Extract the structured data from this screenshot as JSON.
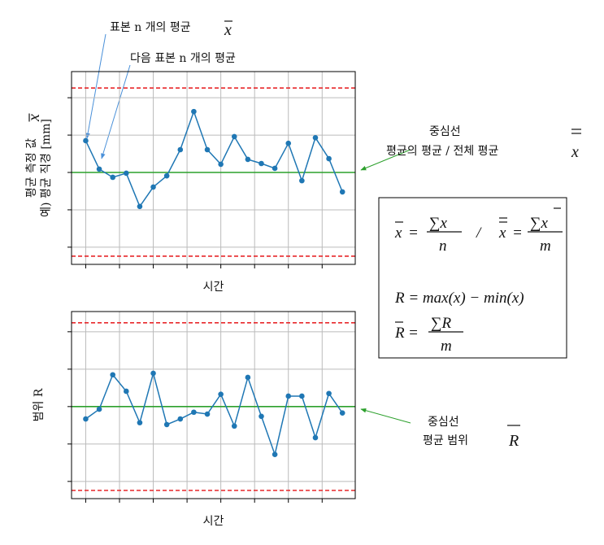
{
  "chart_data": [
    {
      "type": "line",
      "ylabel": [
        "평균 측정 값",
        "예) 평균 직경 [mm]"
      ],
      "ylabel_symbol": "x",
      "xlabel": "시간",
      "x": [
        1,
        2,
        3,
        4,
        5,
        6,
        7,
        8,
        9,
        10,
        11,
        12,
        13,
        14,
        15,
        16,
        17,
        18,
        19,
        20
      ],
      "values": [
        0.85,
        0.09,
        -0.13,
        -0.02,
        -0.91,
        -0.39,
        -0.09,
        0.61,
        1.63,
        0.61,
        0.22,
        0.96,
        0.35,
        0.24,
        0.11,
        0.78,
        -0.22,
        0.93,
        0.37,
        -0.52
      ],
      "color": "#1f77b4",
      "center_line": 0,
      "center_color": "#2ca02c",
      "ucl": 2.26,
      "lcl": -2.24,
      "limit_color": "#e8282b",
      "xlim": [
        -0.05,
        20.95
      ],
      "ylim": [
        -2.46,
        2.7
      ],
      "xticks": [
        1,
        3.5,
        6,
        8.5,
        11,
        13.5,
        16,
        18.5
      ],
      "yticks": [
        -2,
        -1,
        0,
        1,
        2
      ],
      "grid": true
    },
    {
      "type": "line",
      "ylabel": [
        "범위 R"
      ],
      "xlabel": "시간",
      "x": [
        1,
        2,
        3,
        4,
        5,
        6,
        7,
        8,
        9,
        10,
        11,
        12,
        13,
        14,
        15,
        16,
        17,
        18,
        19,
        20
      ],
      "values": [
        -0.33,
        -0.07,
        0.85,
        0.41,
        -0.43,
        0.89,
        -0.48,
        -0.33,
        -0.15,
        -0.2,
        0.33,
        -0.52,
        0.78,
        -0.26,
        -1.28,
        0.28,
        0.28,
        -0.83,
        0.35,
        -0.17
      ],
      "color": "#1f77b4",
      "center_line": 0,
      "center_color": "#2ca02c",
      "ucl": 2.24,
      "lcl": -2.24,
      "limit_color": "#e8282b",
      "xlim": [
        -0.05,
        20.95
      ],
      "ylim": [
        -2.46,
        2.54
      ],
      "xticks": [
        1,
        3.5,
        6,
        8.5,
        11,
        13.5,
        16,
        18.5
      ],
      "yticks": [
        -2,
        -1,
        0,
        1,
        2
      ],
      "grid": true
    }
  ],
  "annotations": {
    "sample_mean": {
      "text": "표본 n 개의 평균",
      "symbol": "x"
    },
    "next_sample_mean": {
      "text": "다음 표본 n 개의 평균"
    },
    "center_mean": {
      "lines": [
        "중심선",
        "평균의 평균 / 전체 평균"
      ],
      "symbol": "x"
    },
    "center_range": {
      "lines": [
        "중심선",
        "평균 범위"
      ],
      "symbol": "R"
    }
  },
  "formula_box": {
    "mean": {
      "symbol": "x",
      "equals": "=",
      "numerator": "∑x",
      "denominator": "n"
    },
    "separator": "/",
    "grand_mean": {
      "symbol": "x",
      "equals": "=",
      "numerator": "∑x",
      "denominator": "m"
    },
    "range": "R = max(x) − min(x)",
    "mean_range": {
      "symbol": "R",
      "equals": "=",
      "numerator": "∑R",
      "denominator": "m"
    }
  }
}
